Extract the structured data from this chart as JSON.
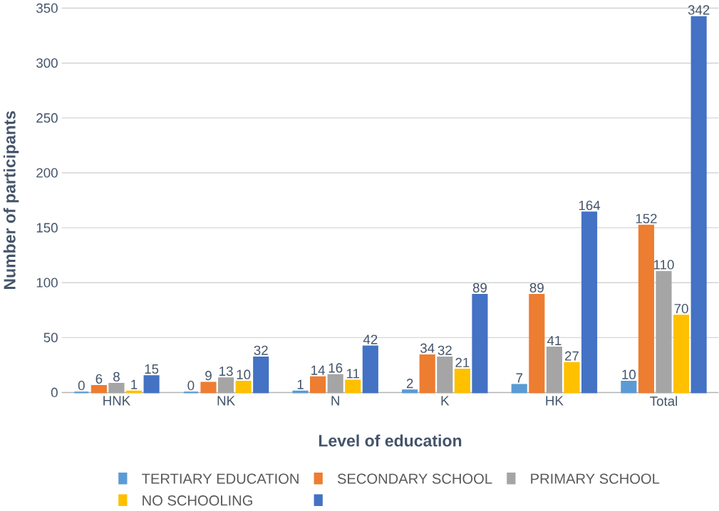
{
  "chart_data": {
    "type": "bar",
    "xlabel": "Level of education",
    "ylabel": "Number of participants",
    "categories": [
      "HNK",
      "NK",
      "N",
      "K",
      "HK",
      "Total"
    ],
    "series": [
      {
        "name": "TERTIARY EDUCATION",
        "color": "#5b9bd5",
        "values": [
          0,
          0,
          1,
          2,
          7,
          10
        ]
      },
      {
        "name": "SECONDARY SCHOOL",
        "color": "#ed7d31",
        "values": [
          6,
          9,
          14,
          34,
          89,
          152
        ]
      },
      {
        "name": "PRIMARY SCHOOL",
        "color": "#a5a5a5",
        "values": [
          8,
          13,
          16,
          32,
          41,
          110
        ]
      },
      {
        "name": "NO SCHOOLING",
        "color": "#ffc000",
        "values": [
          1,
          10,
          11,
          21,
          27,
          70
        ]
      },
      {
        "color": "#4472c4",
        "values": [
          15,
          32,
          42,
          89,
          164,
          342
        ]
      }
    ],
    "ylim": [
      0,
      350
    ],
    "yticks": [
      0,
      50,
      100,
      150,
      200,
      250,
      300,
      350
    ],
    "grid": "y",
    "legend": "bottom",
    "data_labels": true
  }
}
